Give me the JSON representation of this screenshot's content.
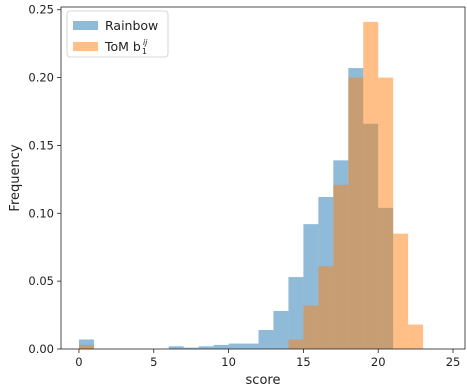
{
  "chart_data": {
    "type": "bar",
    "xlabel": "score",
    "ylabel": "Frequency",
    "xlim": [
      -1.2,
      25.8
    ],
    "ylim": [
      0,
      0.252
    ],
    "x_ticks": [
      0,
      5,
      10,
      15,
      20,
      25
    ],
    "y_ticks": [
      0.0,
      0.05,
      0.1,
      0.15,
      0.2,
      0.25
    ],
    "x_tick_labels": [
      "0",
      "5",
      "10",
      "15",
      "20",
      "25"
    ],
    "y_tick_labels": [
      "0.00",
      "0.05",
      "0.10",
      "0.15",
      "0.20",
      "0.25"
    ],
    "legend_position": "top-left",
    "series": [
      {
        "name": "Rainbow",
        "color": "#1f77b4",
        "opacity": 0.5,
        "bin_starts": [
          0,
          6,
          7,
          8,
          9,
          10,
          11,
          12,
          13,
          14,
          15,
          16,
          17,
          18,
          19,
          20
        ],
        "bin_width": 1,
        "values": [
          0.007,
          0.002,
          0.001,
          0.002,
          0.003,
          0.004,
          0.004,
          0.014,
          0.028,
          0.053,
          0.092,
          0.112,
          0.139,
          0.207,
          0.166,
          0.104
        ]
      },
      {
        "name": "ToM b",
        "name_subscript": "1",
        "name_superscript": "ij",
        "color": "#ff7f0e",
        "opacity": 0.5,
        "bin_starts": [
          0,
          14,
          15,
          16,
          17,
          18,
          19,
          20,
          21,
          22
        ],
        "bin_width": 1,
        "values": [
          0.003,
          0.007,
          0.032,
          0.061,
          0.121,
          0.2,
          0.241,
          0.2,
          0.085,
          0.018
        ]
      }
    ]
  }
}
